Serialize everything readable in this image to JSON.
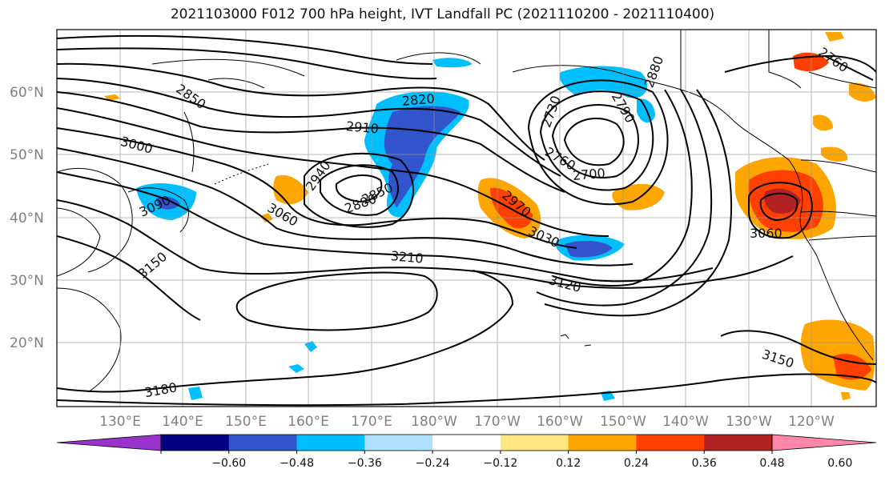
{
  "title": "2021103000 F012 700 hPa height, IVT Landfall PC (2021110200 - 2021110400)",
  "latitude_labels": [
    "60°N",
    "50°N",
    "40°N",
    "30°N",
    "20°N"
  ],
  "longitude_labels": [
    "130°E",
    "140°E",
    "150°E",
    "160°E",
    "170°E",
    "180°W",
    "170°W",
    "160°W",
    "150°W",
    "140°W",
    "130°W",
    "120°W"
  ],
  "contour_labels": [
    "2850",
    "3000",
    "3090",
    "3150",
    "3060",
    "2940",
    "2910",
    "2820",
    "2880",
    "2850",
    "3210",
    "2970",
    "3030",
    "3120",
    "2700",
    "2760",
    "2730",
    "2790",
    "2880",
    "3060",
    "3150",
    "3180",
    "2760"
  ],
  "colorbar": {
    "ticks": [
      "−0.60",
      "−0.48",
      "−0.36",
      "−0.24",
      "−0.12",
      "0.12",
      "0.24",
      "0.36",
      "0.48",
      "0.60"
    ],
    "colors": [
      "#9933cc",
      "#000080",
      "#3355cc",
      "#00bfff",
      "#b0e0ff",
      "#ffffff",
      "#ffe680",
      "#ffa500",
      "#ff4000",
      "#b22222",
      "#ff88aa"
    ]
  }
}
